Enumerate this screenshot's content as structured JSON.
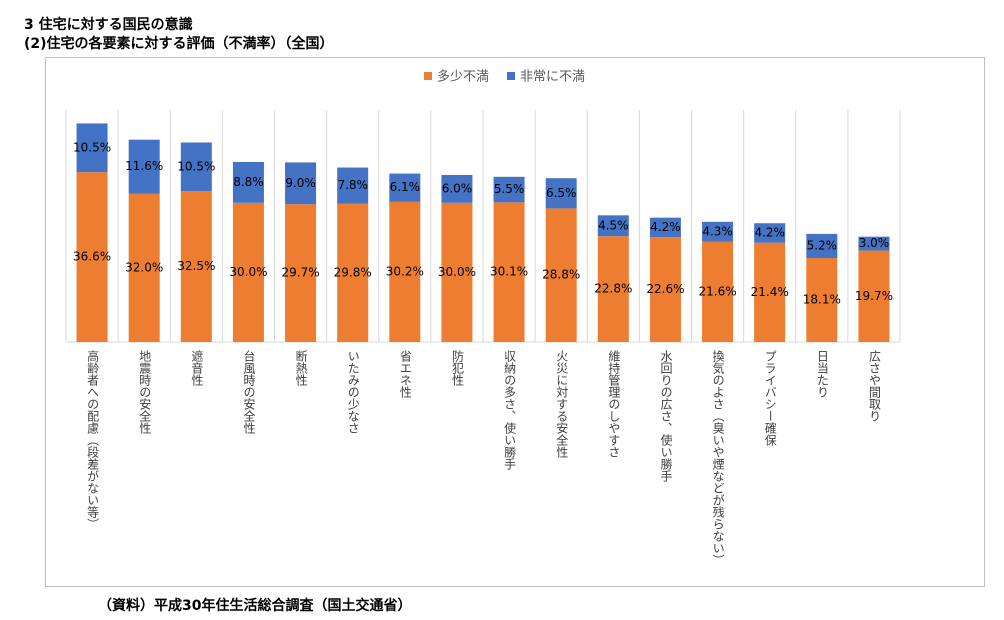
{
  "chart_data": {
    "type": "stacked-bar",
    "title": "3 住宅に対する国民の意識",
    "subtitle": "(2)住宅の各要素に対する評価（不満率）（全国）",
    "source": "（資料）平成30年住生活総合調査（国土交通省）",
    "categories": [
      "高齢者への配慮（段差がない等）",
      "地震時の安全性",
      "遮音性",
      "台風時の安全性",
      "断熱性",
      "いたみの少なさ",
      "省エネ性",
      "防犯性",
      "収納の多さ、使い勝手",
      "火災に対する安全性",
      "維持管理のしやすさ",
      "水回りの広さ、使い勝手",
      "換気のよさ（臭いや煙などが残らない）",
      "プライバシー確保",
      "日当たり",
      "広さや間取り"
    ],
    "series": [
      {
        "name": "多少不満",
        "color": "#ed7d31",
        "values": [
          36.6,
          32.0,
          32.5,
          30.0,
          29.7,
          29.8,
          30.2,
          30.0,
          30.1,
          28.8,
          22.8,
          22.6,
          21.6,
          21.4,
          18.1,
          19.7
        ],
        "value_labels": [
          "36.6%",
          "32.0%",
          "32.5%",
          "30.0%",
          "29.7%",
          "29.8%",
          "30.2%",
          "30.0%",
          "30.1%",
          "28.8%",
          "22.8%",
          "22.6%",
          "21.6%",
          "21.4%",
          "18.1%",
          "19.7%"
        ]
      },
      {
        "name": "非常に不満",
        "color": "#4472c4",
        "values": [
          10.5,
          11.6,
          10.5,
          8.8,
          9.0,
          7.8,
          6.1,
          6.0,
          5.5,
          6.5,
          4.5,
          4.2,
          4.3,
          4.2,
          5.2,
          3.0
        ],
        "value_labels": [
          "10.5%",
          "11.6%",
          "10.5%",
          "8.8%",
          "9.0%",
          "7.8%",
          "6.1%",
          "6.0%",
          "5.5%",
          "6.5%",
          "4.5%",
          "4.2%",
          "4.3%",
          "4.2%",
          "5.2%",
          "3.0%"
        ]
      }
    ],
    "ylim": [
      0,
      50
    ],
    "legend": "top"
  }
}
